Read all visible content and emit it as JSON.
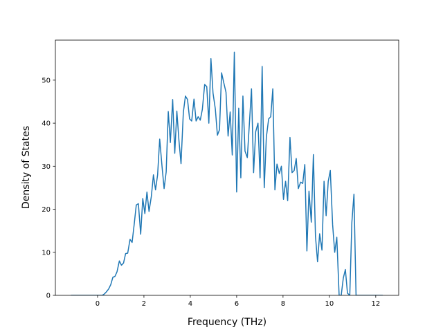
{
  "chart_data": {
    "type": "line",
    "xlabel": "Frequency (THz)",
    "ylabel": "Density of States",
    "x": [
      -1.15,
      0.2,
      0.29,
      0.38,
      0.48,
      0.57,
      0.66,
      0.75,
      0.84,
      0.94,
      1.03,
      1.12,
      1.21,
      1.3,
      1.4,
      1.49,
      1.58,
      1.67,
      1.76,
      1.86,
      1.95,
      2.04,
      2.13,
      2.22,
      2.32,
      2.41,
      2.5,
      2.59,
      2.68,
      2.78,
      2.87,
      2.96,
      3.05,
      3.14,
      3.24,
      3.33,
      3.42,
      3.51,
      3.6,
      3.7,
      3.79,
      3.88,
      3.97,
      4.06,
      4.16,
      4.25,
      4.34,
      4.43,
      4.52,
      4.62,
      4.71,
      4.8,
      4.89,
      4.98,
      5.08,
      5.17,
      5.26,
      5.35,
      5.44,
      5.54,
      5.63,
      5.72,
      5.81,
      5.9,
      6.0,
      6.09,
      6.18,
      6.27,
      6.36,
      6.46,
      6.55,
      6.64,
      6.73,
      6.82,
      6.92,
      7.01,
      7.1,
      7.19,
      7.28,
      7.38,
      7.47,
      7.56,
      7.65,
      7.74,
      7.84,
      7.93,
      8.02,
      8.11,
      8.2,
      8.3,
      8.39,
      8.48,
      8.57,
      8.66,
      8.76,
      8.85,
      8.94,
      9.03,
      9.12,
      9.22,
      9.31,
      9.4,
      9.49,
      9.58,
      9.68,
      9.77,
      9.86,
      9.95,
      10.04,
      10.14,
      10.23,
      10.32,
      10.42,
      10.51,
      10.6,
      10.69,
      10.78,
      10.88,
      10.97,
      11.06,
      11.15,
      11.24,
      12.3
    ],
    "series": [
      {
        "color": "#1f77b4",
        "values": [
          0,
          0,
          0.3,
          0.8,
          1.5,
          2.5,
          4.2,
          4.4,
          5.5,
          8,
          7,
          7.5,
          9.7,
          9.8,
          13,
          12.3,
          16.5,
          21,
          21.3,
          14.2,
          22.5,
          19,
          24,
          19.5,
          23,
          28,
          24.5,
          28,
          36.3,
          30,
          24.8,
          28.7,
          42.7,
          35.5,
          45.5,
          33,
          42.8,
          36,
          30.6,
          42.5,
          46.3,
          45.5,
          41,
          40.5,
          45.6,
          40.5,
          41.5,
          40.7,
          43.2,
          49,
          48.5,
          40,
          55,
          47,
          43.3,
          37.2,
          38.5,
          51.7,
          49.5,
          47.2,
          37,
          42.6,
          32.6,
          56.5,
          24,
          43.5,
          27.3,
          46.3,
          33.5,
          32,
          40,
          48,
          28.5,
          38,
          40,
          27.3,
          53.2,
          25,
          36.7,
          41,
          41.5,
          48,
          24.5,
          30.5,
          28.3,
          30,
          22.3,
          26.5,
          22,
          36.7,
          28.5,
          29,
          31.8,
          24.8,
          26.3,
          26,
          30.4,
          10.3,
          24.2,
          17,
          32.7,
          13.7,
          7.8,
          14.3,
          10.5,
          26.5,
          18.5,
          26.5,
          29,
          16.4,
          10,
          13.5,
          0,
          0,
          4,
          6,
          0.5,
          0,
          17,
          23.5,
          0,
          0,
          0
        ]
      }
    ],
    "xlim": [
      -1.82,
      12.99
    ],
    "ylim": [
      0,
      59.3
    ],
    "xticks": [
      0,
      2,
      4,
      6,
      8,
      10,
      12
    ],
    "yticks": [
      0,
      10,
      20,
      30,
      40,
      50
    ]
  }
}
